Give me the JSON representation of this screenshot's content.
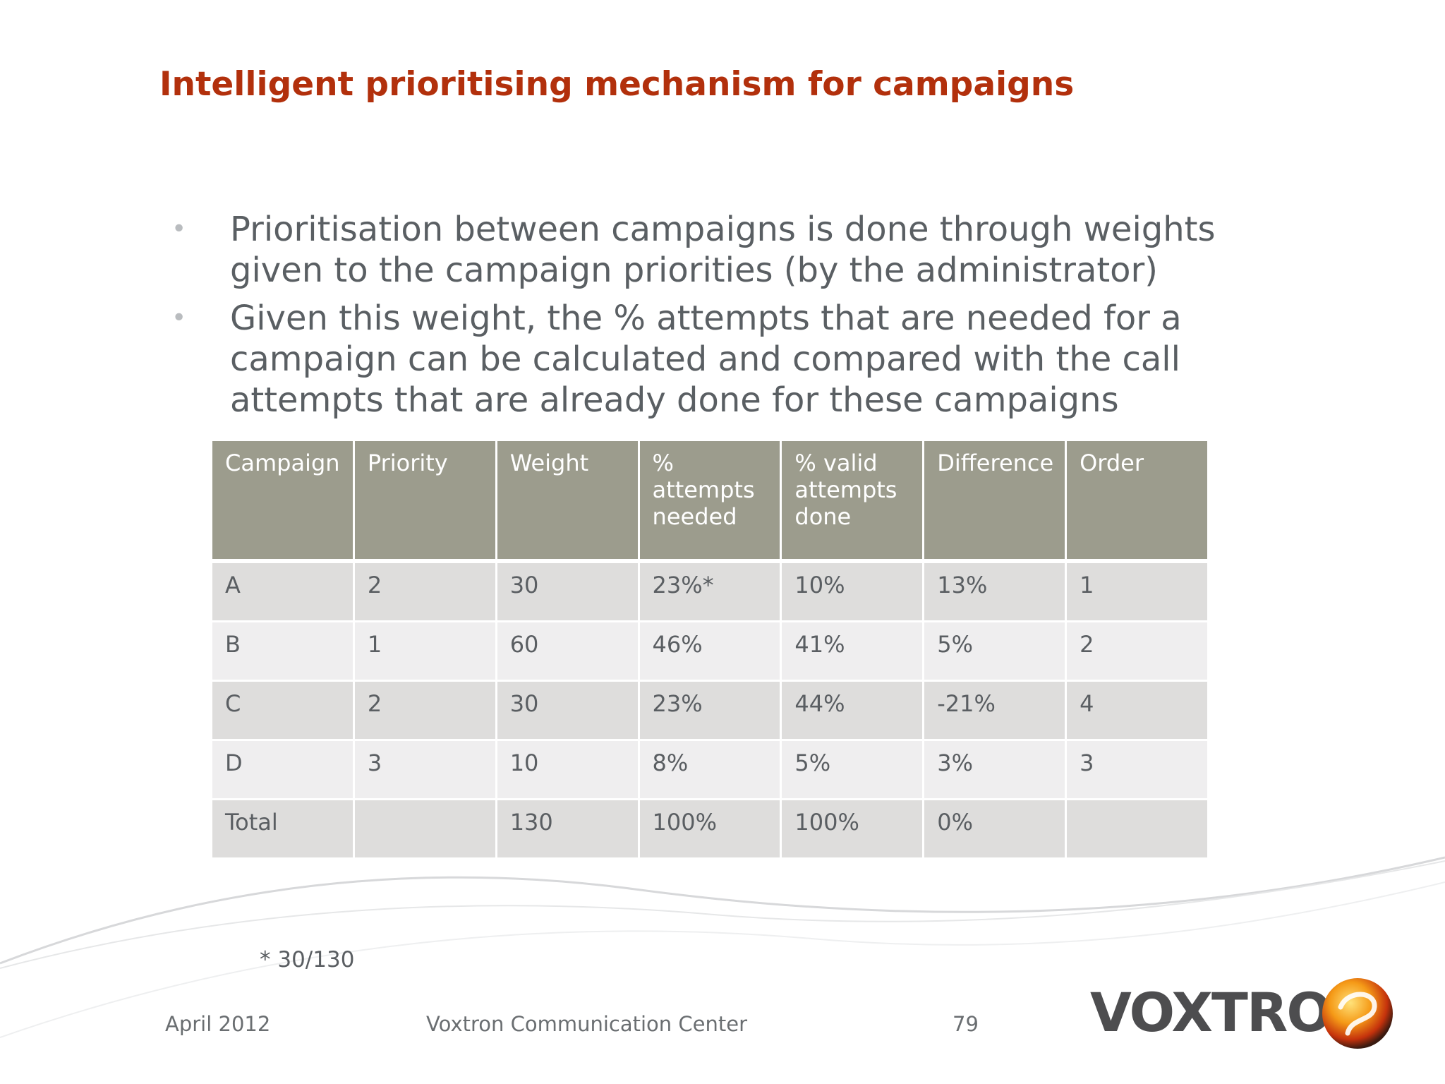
{
  "slide": {
    "title": "Intelligent prioritising mechanism for campaigns",
    "bullets": [
      "Prioritisation between campaigns is done through weights given to the campaign priorities (by the administrator)",
      "Given this weight, the % attempts that are needed for a campaign can be calculated and compared with the call attempts that are already done for these campaigns"
    ]
  },
  "table": {
    "headers": [
      "Campaign",
      "Priority",
      "Weight",
      "% attempts needed",
      "% valid attempts done",
      "Difference",
      "Order"
    ],
    "rows": [
      [
        "A",
        "2",
        "30",
        "23%*",
        "10%",
        "13%",
        "1"
      ],
      [
        "B",
        "1",
        "60",
        "46%",
        "41%",
        "5%",
        "2"
      ],
      [
        "C",
        "2",
        "30",
        "23%",
        "44%",
        "-21%",
        "4"
      ],
      [
        "D",
        "3",
        "10",
        "8%",
        "5%",
        "3%",
        "3"
      ],
      [
        "Total",
        "",
        "130",
        "100%",
        "100%",
        "0%",
        ""
      ]
    ]
  },
  "footnote": "* 30/130",
  "footer": {
    "date": "April 2012",
    "center": "Voxtron Communication Center",
    "page": "79"
  },
  "logo": {
    "text": "VOXTRON",
    "icon": "voxtron-ball-icon"
  },
  "colors": {
    "title": "#b2300c",
    "header_bg": "#9c9c8d",
    "row_odd": "#dedddc",
    "row_even": "#efeeef"
  }
}
